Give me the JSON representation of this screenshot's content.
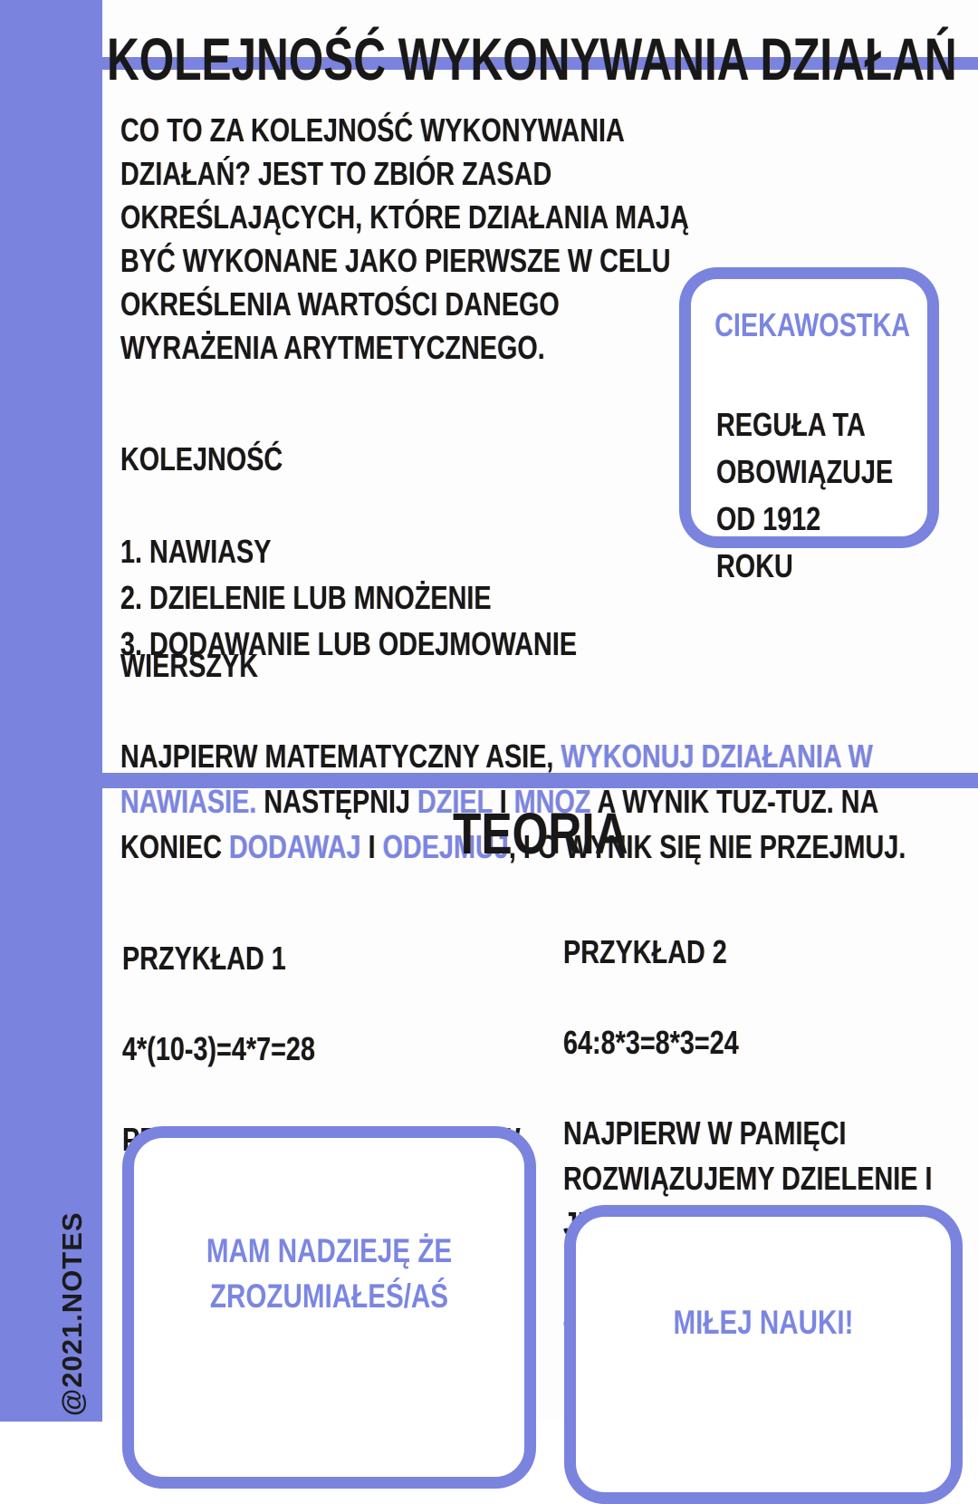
{
  "colors": {
    "accent": "#7a83de",
    "accent_text": "#7b86e2",
    "ink": "#181818",
    "background": "#ffffff"
  },
  "page": {
    "title": "KOLEJNOŚĆ WYKONYWANIA DZIAŁAŃ",
    "watermark": "@2021.NOTES"
  },
  "intro": {
    "text": "CO TO ZA KOLEJNOŚĆ WYKONYWANIA\nDZIAŁAŃ? JEST TO ZBIÓR ZASAD\nOKREŚLAJĄCYCH, KTÓRE DZIAŁANIA MAJĄ\nBYĆ WYKONANE JAKO PIERWSZE W CELU\nOKREŚLENIA WARTOŚCI DANEGO\nWYRAŻENIA ARYTMETYCZNEGO."
  },
  "fact_box": {
    "title": "CIEKAWOSTKA",
    "body": "REGUŁA TA\nOBOWIĄZUJE\nOD 1912 ROKU"
  },
  "order": {
    "heading": "KOLEJNOŚĆ",
    "items": [
      "1. NAWIASY",
      "2. DZIELENIE LUB MNOŻENIE",
      "3. DODAWANIE LUB ODEJMOWANIE"
    ]
  },
  "rhyme": {
    "heading": "WIERSZYK",
    "segments": [
      {
        "tone": "ink",
        "text": "NAJPIERW MATEMATYCZNY ASIE, "
      },
      {
        "tone": "accent",
        "text": "WYKONUJ DZIAŁANIA W\nNAWIASIE."
      },
      {
        "tone": "ink",
        "text": " NASTĘPNIJ "
      },
      {
        "tone": "accent",
        "text": "DZIEL"
      },
      {
        "tone": "ink",
        "text": " I "
      },
      {
        "tone": "accent",
        "text": "MNÓŻ"
      },
      {
        "tone": "ink",
        "text": " A WYNIK TUŻ-TUŻ. NA\nKONIEC "
      },
      {
        "tone": "accent",
        "text": "DODAWAJ"
      },
      {
        "tone": "ink",
        "text": " I "
      },
      {
        "tone": "accent",
        "text": "ODEJMUJ"
      },
      {
        "tone": "ink",
        "text": ", I O WYNIK SIĘ NIE PRZEJMUJ."
      }
    ]
  },
  "theory": {
    "heading": "TEORIA",
    "example1": {
      "title": "PRZYKŁAD 1",
      "equation": "4*(10-3)=4*7=28",
      "description": "PRZEPISUJEMY POCZĄTEK I W\nPAMIĘCI ROZWIĄZUJEMY\nNAWIAS. ZAPISUJEMY JEGO"
    },
    "example2": {
      "title": "PRZYKŁAD 2",
      "equation": "64:8*3=8*3=24",
      "description": "NAJPIERW W PAMIĘCI\nROZWIĄZUJEMY DZIELENIE I\nJE ZAPISUJEMY. PÓŹNIEJ\nMNOŻYMY GO. NA KOŃCU\nZAPISUJEMY WYNIK"
    }
  },
  "footer": {
    "hope_message": "MAM NADZIEJĘ ŻE\nZROZUMIAŁEŚ/AŚ",
    "study_message": "MIŁEJ NAUKI!"
  }
}
